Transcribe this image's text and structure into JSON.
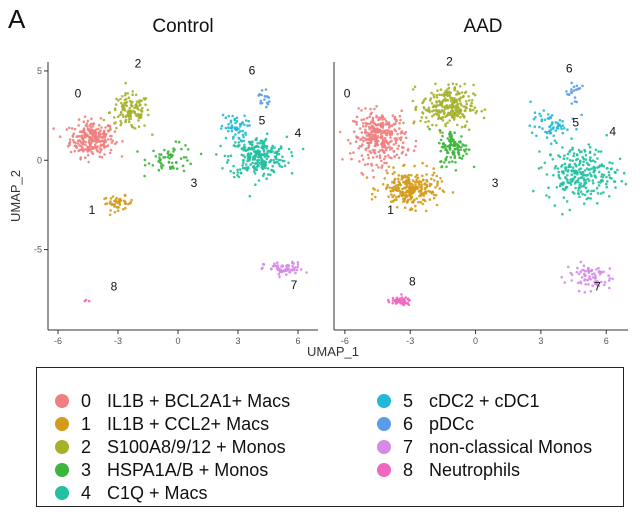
{
  "figure": {
    "panel_letter": "A",
    "axis_x_label": "UMAP_1",
    "axis_y_label": "UMAP_2"
  },
  "legend": {
    "items": [
      {
        "id": "0",
        "text": "IL1B + BCL2A1+ Macs",
        "color": "#f08080"
      },
      {
        "id": "1",
        "text": "IL1B + CCL2+ Macs",
        "color": "#d49a1a"
      },
      {
        "id": "2",
        "text": "S100A8/9/12 + Monos",
        "color": "#a5b12b"
      },
      {
        "id": "3",
        "text": "HSPA1A/B + Monos",
        "color": "#3cb53c"
      },
      {
        "id": "4",
        "text": "C1Q + Macs",
        "color": "#20c0a0"
      },
      {
        "id": "5",
        "text": "cDC2 + cDC1",
        "color": "#22b8d8"
      },
      {
        "id": "6",
        "text": "pDCc",
        "color": "#5b9be8"
      },
      {
        "id": "7",
        "text": "non-classical Monos",
        "color": "#d58ae8"
      },
      {
        "id": "8",
        "text": "Neutrophils",
        "color": "#f068c0"
      }
    ]
  },
  "chart_data": [
    {
      "type": "scatter",
      "title": "Control",
      "xlabel": "UMAP_1",
      "ylabel": "UMAP_2",
      "xlim": [
        -6.5,
        7
      ],
      "ylim": [
        -9.5,
        5.5
      ],
      "x_ticks": [
        "-6",
        "-3",
        "0",
        "3",
        "6"
      ],
      "y_ticks": [
        "5",
        "0",
        "-5"
      ],
      "grid": false,
      "clusters": [
        {
          "id": "0",
          "center": [
            -4.3,
            1.2
          ],
          "spread": [
            1.0,
            0.9
          ],
          "n": 260
        },
        {
          "id": "1",
          "center": [
            -3.0,
            -2.4
          ],
          "spread": [
            0.7,
            0.35
          ],
          "n": 45
        },
        {
          "id": "2",
          "center": [
            -2.4,
            2.7
          ],
          "spread": [
            0.9,
            0.9
          ],
          "n": 130
        },
        {
          "id": "3",
          "center": [
            -0.3,
            0.1
          ],
          "spread": [
            1.1,
            0.7
          ],
          "n": 60
        },
        {
          "id": "4",
          "center": [
            4.0,
            0.2
          ],
          "spread": [
            1.3,
            1.0
          ],
          "n": 260
        },
        {
          "id": "5",
          "center": [
            2.8,
            1.8
          ],
          "spread": [
            0.6,
            0.7
          ],
          "n": 55
        },
        {
          "id": "6",
          "center": [
            4.3,
            3.5
          ],
          "spread": [
            0.25,
            0.6
          ],
          "n": 18
        },
        {
          "id": "7",
          "center": [
            5.3,
            -6.1
          ],
          "spread": [
            0.9,
            0.35
          ],
          "n": 65
        },
        {
          "id": "8",
          "center": [
            -4.5,
            -7.9
          ],
          "spread": [
            0.2,
            0.1
          ],
          "n": 3
        }
      ],
      "cluster_labels": [
        {
          "text": "0",
          "x": -5.0,
          "y": 3.5
        },
        {
          "text": "1",
          "x": -4.3,
          "y": -3.0
        },
        {
          "text": "2",
          "x": -2.0,
          "y": 5.2
        },
        {
          "text": "3",
          "x": 0.8,
          "y": -1.5
        },
        {
          "text": "4",
          "x": 6.0,
          "y": 1.3
        },
        {
          "text": "5",
          "x": 4.2,
          "y": 2.0
        },
        {
          "text": "6",
          "x": 3.7,
          "y": 4.8
        },
        {
          "text": "7",
          "x": 5.8,
          "y": -7.2
        },
        {
          "text": "8",
          "x": -3.2,
          "y": -7.3
        }
      ]
    },
    {
      "type": "scatter",
      "title": "AAD",
      "xlabel": "UMAP_1",
      "ylabel": "UMAP_2",
      "xlim": [
        -6.5,
        7
      ],
      "ylim": [
        -9.5,
        5.5
      ],
      "x_ticks": [
        "-6",
        "-3",
        "0",
        "3",
        "6"
      ],
      "y_ticks": [
        "5",
        "0",
        "-5"
      ],
      "grid": false,
      "clusters": [
        {
          "id": "0",
          "center": [
            -4.4,
            1.3
          ],
          "spread": [
            1.1,
            1.3
          ],
          "n": 320
        },
        {
          "id": "1",
          "center": [
            -3.0,
            -1.6
          ],
          "spread": [
            1.2,
            0.9
          ],
          "n": 260
        },
        {
          "id": "2",
          "center": [
            -1.3,
            3.0
          ],
          "spread": [
            1.1,
            1.1
          ],
          "n": 260
        },
        {
          "id": "3",
          "center": [
            -1.0,
            0.7
          ],
          "spread": [
            0.6,
            0.9
          ],
          "n": 110
        },
        {
          "id": "4",
          "center": [
            4.8,
            -0.7
          ],
          "spread": [
            1.4,
            1.4
          ],
          "n": 260
        },
        {
          "id": "5",
          "center": [
            3.4,
            1.9
          ],
          "spread": [
            0.8,
            0.7
          ],
          "n": 60
        },
        {
          "id": "6",
          "center": [
            4.5,
            3.8
          ],
          "spread": [
            0.3,
            0.9
          ],
          "n": 22
        },
        {
          "id": "7",
          "center": [
            5.2,
            -6.5
          ],
          "spread": [
            1.0,
            0.7
          ],
          "n": 75
        },
        {
          "id": "8",
          "center": [
            -3.5,
            -7.9
          ],
          "spread": [
            0.5,
            0.2
          ],
          "n": 50
        }
      ],
      "cluster_labels": [
        {
          "text": "0",
          "x": -5.9,
          "y": 3.5
        },
        {
          "text": "1",
          "x": -3.9,
          "y": -3.0
        },
        {
          "text": "2",
          "x": -1.2,
          "y": 5.3
        },
        {
          "text": "3",
          "x": 0.9,
          "y": -1.5
        },
        {
          "text": "4",
          "x": 6.3,
          "y": 1.4
        },
        {
          "text": "5",
          "x": 4.6,
          "y": 1.9
        },
        {
          "text": "6",
          "x": 4.3,
          "y": 4.9
        },
        {
          "text": "7",
          "x": 5.6,
          "y": -7.3
        },
        {
          "text": "8",
          "x": -2.9,
          "y": -7.0
        }
      ]
    }
  ]
}
